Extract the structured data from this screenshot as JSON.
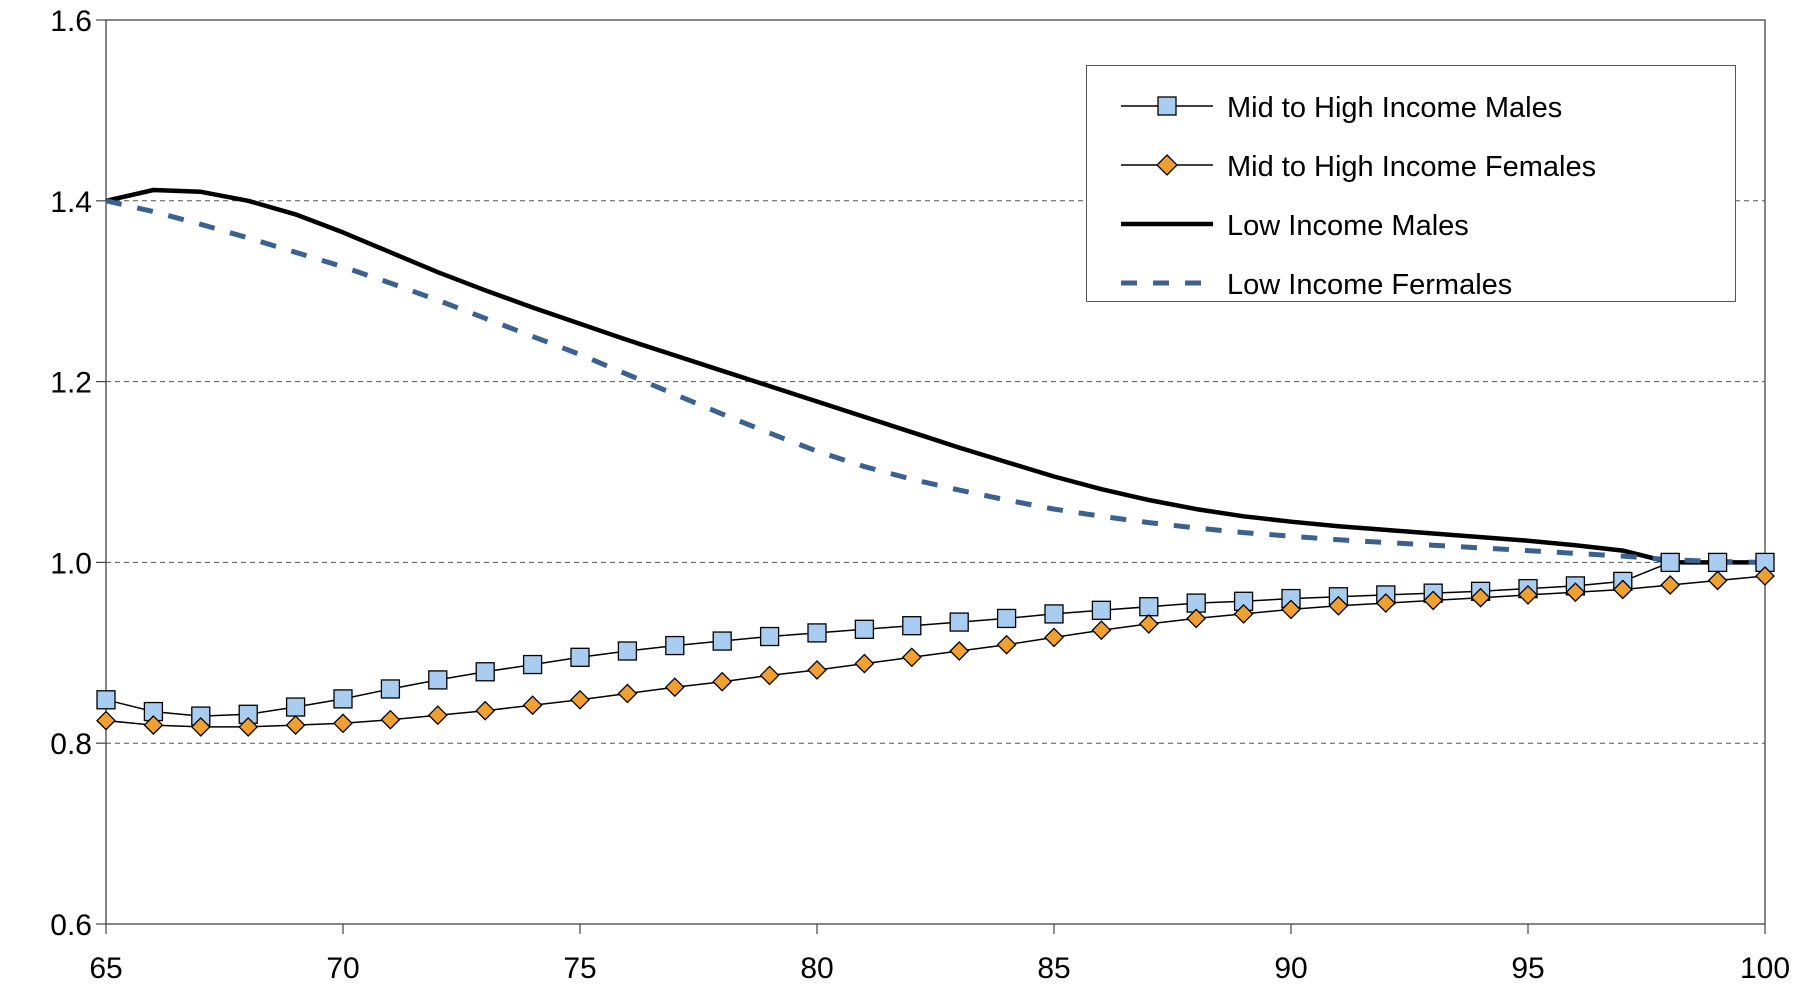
{
  "chart_data": {
    "type": "line",
    "title": "",
    "xlabel": "",
    "ylabel": "",
    "xlim": [
      65,
      100
    ],
    "ylim": [
      0.6,
      1.6
    ],
    "x_ticks": [
      "65",
      "70",
      "75",
      "80",
      "85",
      "90",
      "95",
      "100"
    ],
    "y_ticks": [
      "0.6",
      "0.8",
      "1.0",
      "1.2",
      "1.4",
      "1.6"
    ],
    "grid": "horizontal dashed",
    "legend_position": "top-right",
    "x": [
      65,
      66,
      67,
      68,
      69,
      70,
      71,
      72,
      73,
      74,
      75,
      76,
      77,
      78,
      79,
      80,
      81,
      82,
      83,
      84,
      85,
      86,
      87,
      88,
      89,
      90,
      91,
      92,
      93,
      94,
      95,
      96,
      97,
      98,
      99,
      100
    ],
    "series": [
      {
        "name": "Mid to High Income Males",
        "color": "#a9cdf0",
        "marker": "square",
        "values": [
          0.848,
          0.835,
          0.83,
          0.832,
          0.84,
          0.849,
          0.86,
          0.87,
          0.879,
          0.887,
          0.895,
          0.902,
          0.908,
          0.913,
          0.918,
          0.922,
          0.926,
          0.93,
          0.934,
          0.938,
          0.943,
          0.947,
          0.951,
          0.955,
          0.957,
          0.96,
          0.962,
          0.964,
          0.966,
          0.968,
          0.971,
          0.974,
          0.979,
          1.0,
          1.0,
          1.0
        ]
      },
      {
        "name": "Mid to High Income Females",
        "color": "#f0a030",
        "marker": "diamond",
        "values": [
          0.825,
          0.82,
          0.818,
          0.818,
          0.82,
          0.822,
          0.826,
          0.831,
          0.836,
          0.842,
          0.848,
          0.855,
          0.862,
          0.868,
          0.875,
          0.881,
          0.888,
          0.895,
          0.902,
          0.909,
          0.917,
          0.925,
          0.932,
          0.938,
          0.943,
          0.948,
          0.952,
          0.955,
          0.958,
          0.961,
          0.964,
          0.967,
          0.97,
          0.975,
          0.98,
          0.985
        ]
      },
      {
        "name": "Low Income Males",
        "color": "#000000",
        "marker": "none",
        "values": [
          1.4,
          1.412,
          1.41,
          1.4,
          1.385,
          1.365,
          1.343,
          1.321,
          1.301,
          1.282,
          1.264,
          1.246,
          1.229,
          1.212,
          1.195,
          1.178,
          1.161,
          1.144,
          1.127,
          1.111,
          1.095,
          1.081,
          1.069,
          1.059,
          1.051,
          1.045,
          1.04,
          1.036,
          1.032,
          1.028,
          1.024,
          1.019,
          1.013,
          1.0,
          1.0,
          1.0
        ]
      },
      {
        "name": "Low Income Fermales",
        "color": "#3a6190",
        "marker": "none",
        "dashed": true,
        "values": [
          1.4,
          1.388,
          1.374,
          1.359,
          1.343,
          1.327,
          1.309,
          1.29,
          1.27,
          1.25,
          1.23,
          1.208,
          1.186,
          1.164,
          1.143,
          1.123,
          1.106,
          1.092,
          1.08,
          1.069,
          1.059,
          1.051,
          1.044,
          1.038,
          1.033,
          1.029,
          1.025,
          1.022,
          1.019,
          1.016,
          1.013,
          1.01,
          1.007,
          1.003,
          1.001,
          1.0
        ]
      }
    ]
  }
}
